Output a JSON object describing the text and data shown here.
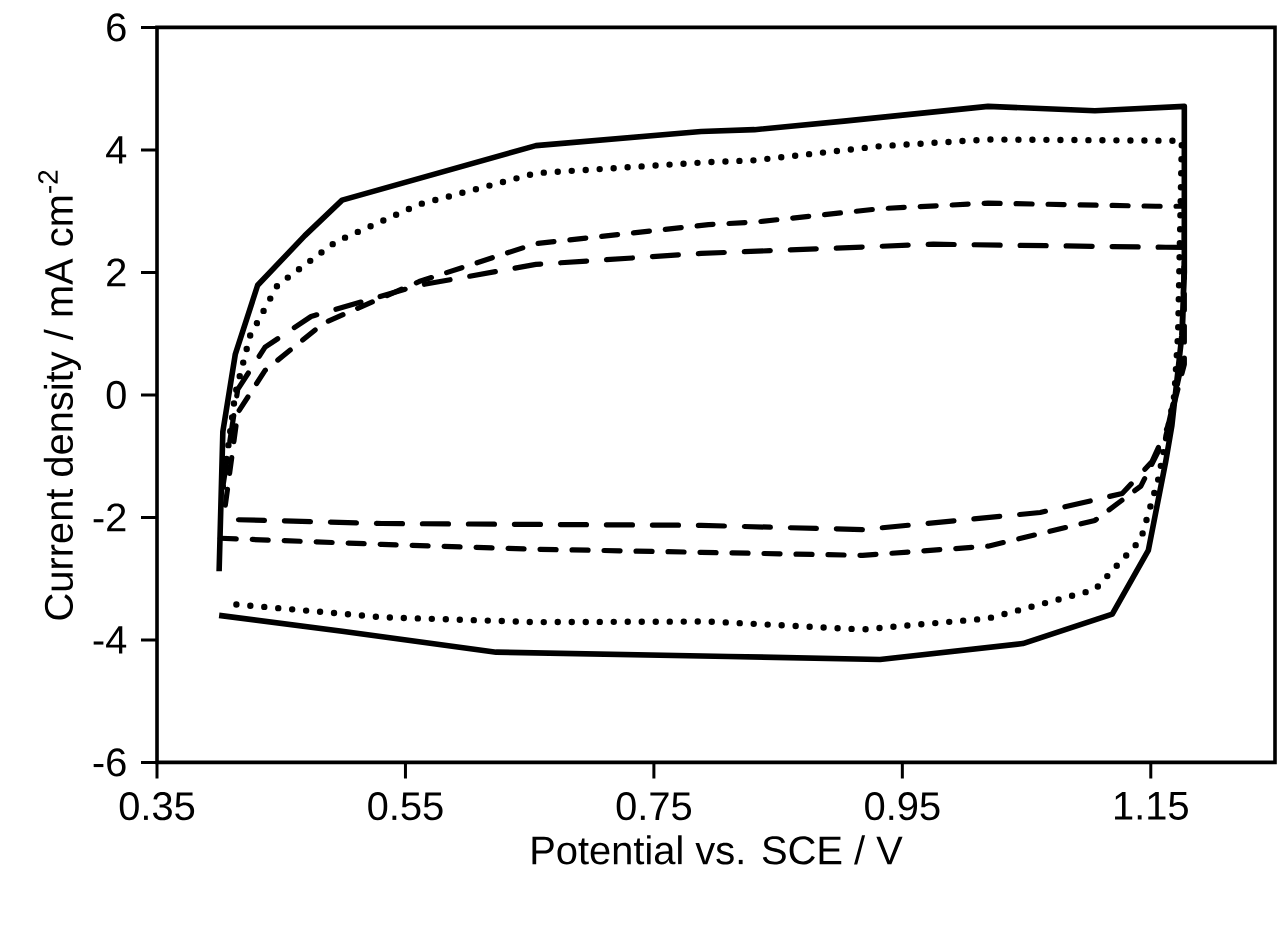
{
  "chart_data": {
    "type": "line",
    "xlabel": "Potential vs. SCE / V",
    "ylabel": "Current density / mA cm$^{-2}$",
    "xlim": [
      0.35,
      1.25
    ],
    "ylim": [
      -6,
      6
    ],
    "xticks": [
      0.35,
      0.55,
      0.75,
      0.95,
      1.15
    ],
    "yticks": [
      -6,
      -4,
      -2,
      0,
      2,
      4,
      6
    ],
    "series": [
      {
        "color": "#000000",
        "line_style": "solid",
        "x": [
          0.4,
          0.403,
          0.413,
          0.431,
          0.469,
          0.499,
          0.655,
          0.788,
          0.831,
          0.903,
          1.019,
          1.105,
          1.177,
          1.177,
          1.175,
          1.167,
          1.162,
          1.148,
          1.119,
          1.047,
          0.932,
          0.81,
          0.623,
          0.499,
          0.4
        ],
        "values": [
          -2.88,
          -0.6,
          0.66,
          1.79,
          2.6,
          3.18,
          4.07,
          4.3,
          4.33,
          4.47,
          4.71,
          4.64,
          4.71,
          2.0,
          0.97,
          -0.5,
          -1.09,
          -2.54,
          -3.58,
          -4.06,
          -4.32,
          -4.27,
          -4.2,
          -3.86,
          -3.6
        ]
      },
      {
        "color": "#000000",
        "line_style": "dotted",
        "x": [
          0.403,
          0.413,
          0.425,
          0.447,
          0.494,
          0.561,
          0.655,
          0.794,
          0.831,
          0.932,
          1.019,
          1.162,
          1.175,
          1.172,
          1.169,
          1.156,
          1.142,
          1.105,
          1.019,
          0.918,
          0.794,
          0.655,
          0.531,
          0.413
        ],
        "values": [
          -1.5,
          0.02,
          0.97,
          1.79,
          2.5,
          3.11,
          3.62,
          3.8,
          3.83,
          4.06,
          4.17,
          4.15,
          4.15,
          1.0,
          0,
          -1.38,
          -2.36,
          -3.18,
          -3.65,
          -3.83,
          -3.7,
          -3.71,
          -3.63,
          -3.42
        ]
      },
      {
        "color": "#000000",
        "line_style": "dashed",
        "x": [
          0.405,
          0.415,
          0.437,
          0.484,
          0.561,
          0.655,
          0.794,
          0.831,
          0.932,
          1.019,
          1.154,
          1.177,
          1.177,
          1.162,
          1.142,
          1.105,
          1.019,
          0.918,
          0.788,
          0.655,
          0.531,
          0.4
        ],
        "values": [
          -1.8,
          -0.29,
          0.4,
          1.17,
          1.85,
          2.47,
          2.78,
          2.82,
          3.04,
          3.13,
          3.08,
          3.08,
          0.5,
          -0.68,
          -1.49,
          -2.05,
          -2.47,
          -2.62,
          -2.57,
          -2.52,
          -2.44,
          -2.34
        ]
      },
      {
        "color": "#000000",
        "line_style": "dashed",
        "x": [
          0.403,
          0.415,
          0.437,
          0.474,
          0.561,
          0.655,
          0.788,
          0.975,
          1.162,
          1.177,
          1.175,
          1.164,
          1.151,
          1.127,
          1.061,
          0.918,
          0.788,
          0.531,
          0.4
        ],
        "values": [
          -1.5,
          0.09,
          0.78,
          1.28,
          1.79,
          2.13,
          2.31,
          2.46,
          2.41,
          2.41,
          0.5,
          -0.5,
          -1.09,
          -1.61,
          -1.92,
          -2.2,
          -2.13,
          -2.1,
          -2.03
        ]
      }
    ]
  }
}
